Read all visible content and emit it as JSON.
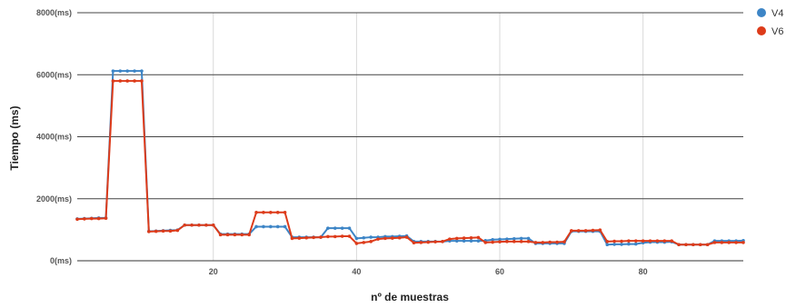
{
  "chart_data": {
    "type": "line",
    "xlabel": "nº de muestras",
    "ylabel": "Tiempo (ms)",
    "xlim": [
      1,
      94
    ],
    "ylim": [
      0,
      8000
    ],
    "x_ticks": [
      20,
      40,
      60,
      80
    ],
    "y_ticks": [
      {
        "value": 0,
        "label": "0(ms)"
      },
      {
        "value": 2000,
        "label": "2000(ms)"
      },
      {
        "value": 4000,
        "label": "4000(ms)"
      },
      {
        "value": 6000,
        "label": "6000(ms)"
      },
      {
        "value": 8000,
        "label": "8000(ms)"
      }
    ],
    "grid": true,
    "legend_position": "top-right",
    "x": [
      1,
      2,
      3,
      4,
      5,
      6,
      7,
      8,
      9,
      10,
      11,
      12,
      13,
      14,
      15,
      16,
      17,
      18,
      19,
      20,
      21,
      22,
      23,
      24,
      25,
      26,
      27,
      28,
      29,
      30,
      31,
      32,
      33,
      34,
      35,
      36,
      37,
      38,
      39,
      40,
      41,
      42,
      43,
      44,
      45,
      46,
      47,
      48,
      49,
      50,
      51,
      52,
      53,
      54,
      55,
      56,
      57,
      58,
      59,
      60,
      61,
      62,
      63,
      64,
      65,
      66,
      67,
      68,
      69,
      70,
      71,
      72,
      73,
      74,
      75,
      76,
      77,
      78,
      79,
      80,
      81,
      82,
      83,
      84,
      85,
      86,
      87,
      88,
      89,
      90,
      91,
      92,
      93,
      94
    ],
    "series": [
      {
        "name": "V4",
        "color": "#3d85c6",
        "values": [
          1350,
          1360,
          1370,
          1380,
          1380,
          6120,
          6120,
          6120,
          6120,
          6120,
          950,
          960,
          970,
          980,
          990,
          1150,
          1150,
          1150,
          1150,
          1150,
          860,
          860,
          860,
          860,
          860,
          1100,
          1100,
          1100,
          1100,
          1100,
          760,
          760,
          760,
          760,
          760,
          1050,
          1050,
          1050,
          1050,
          720,
          740,
          760,
          760,
          780,
          780,
          790,
          800,
          620,
          620,
          620,
          620,
          620,
          640,
          640,
          640,
          640,
          640,
          650,
          680,
          690,
          700,
          710,
          720,
          720,
          560,
          560,
          560,
          560,
          560,
          950,
          950,
          950,
          950,
          950,
          520,
          530,
          530,
          540,
          540,
          580,
          600,
          600,
          600,
          610,
          520,
          520,
          520,
          520,
          520,
          640,
          640,
          640,
          640,
          650
        ]
      },
      {
        "name": "V6",
        "color": "#dd3b1a",
        "values": [
          1340,
          1350,
          1360,
          1360,
          1370,
          5800,
          5800,
          5800,
          5800,
          5800,
          940,
          950,
          960,
          960,
          980,
          1150,
          1150,
          1150,
          1150,
          1150,
          840,
          840,
          840,
          840,
          840,
          1560,
          1560,
          1560,
          1560,
          1560,
          720,
          730,
          740,
          750,
          760,
          780,
          780,
          790,
          790,
          560,
          590,
          620,
          700,
          720,
          730,
          740,
          760,
          580,
          590,
          600,
          610,
          620,
          700,
          720,
          730,
          740,
          750,
          590,
          600,
          610,
          620,
          620,
          620,
          620,
          590,
          590,
          600,
          600,
          610,
          970,
          970,
          970,
          980,
          990,
          620,
          630,
          630,
          640,
          640,
          640,
          640,
          640,
          640,
          640,
          520,
          520,
          520,
          520,
          520,
          590,
          590,
          590,
          590,
          590
        ]
      }
    ]
  }
}
